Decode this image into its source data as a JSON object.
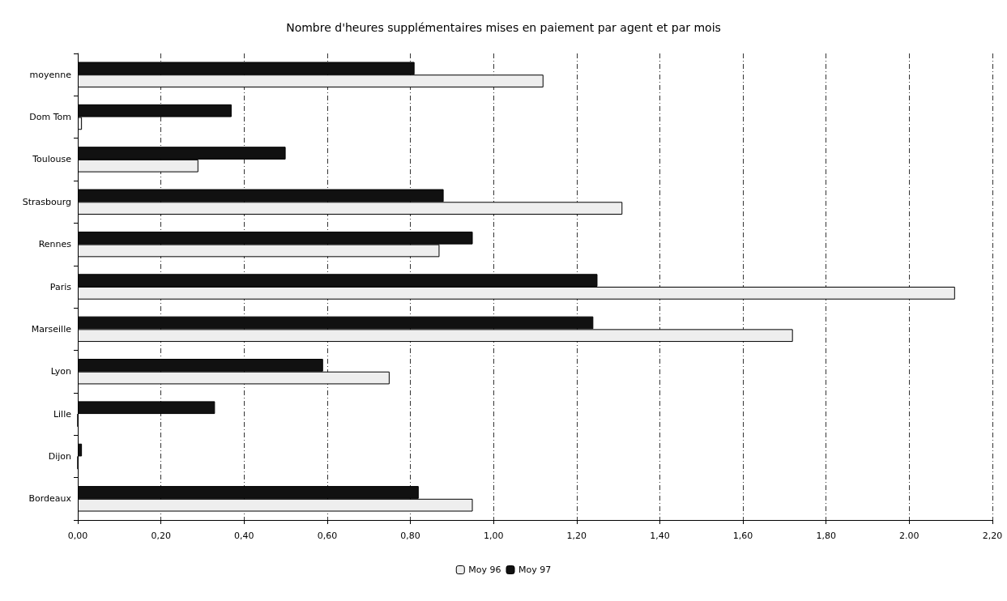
{
  "chart_data": {
    "type": "bar",
    "orientation": "horizontal",
    "title": "Nombre d'heures supplémentaires mises en paiement par agent et par mois",
    "categories": [
      "moyenne",
      "Dom Tom",
      "Toulouse",
      "Strasbourg",
      "Rennes",
      "Paris",
      "Marseille",
      "Lyon",
      "Lille",
      "Dijon",
      "Bordeaux"
    ],
    "series": [
      {
        "name": "Moy 96",
        "color": "#eeeeee",
        "values": [
          1.12,
          0.01,
          0.29,
          1.31,
          0.87,
          2.11,
          1.72,
          0.75,
          0,
          0,
          0.95
        ]
      },
      {
        "name": "Moy 97",
        "color": "#111111",
        "values": [
          0.81,
          0.37,
          0.5,
          0.88,
          0.95,
          1.25,
          1.24,
          0.59,
          0.33,
          0.01,
          0.82
        ]
      }
    ],
    "xlim": [
      0,
      2.2
    ],
    "xticks": [
      {
        "value": 0,
        "label": "0,00"
      },
      {
        "value": 0.2,
        "label": "0,20"
      },
      {
        "value": 0.4,
        "label": "0,40"
      },
      {
        "value": 0.6,
        "label": "0,60"
      },
      {
        "value": 0.8,
        "label": "0,80"
      },
      {
        "value": 1,
        "label": "1,00"
      },
      {
        "value": 1.2,
        "label": "1,20"
      },
      {
        "value": 1.4,
        "label": "1,40"
      },
      {
        "value": 1.6,
        "label": "1,60"
      },
      {
        "value": 1.8,
        "label": "1,80"
      },
      {
        "value": 2,
        "label": "2.00"
      },
      {
        "value": 2.2,
        "label": "2,20"
      }
    ],
    "grid": "x",
    "legend": "bottom"
  }
}
